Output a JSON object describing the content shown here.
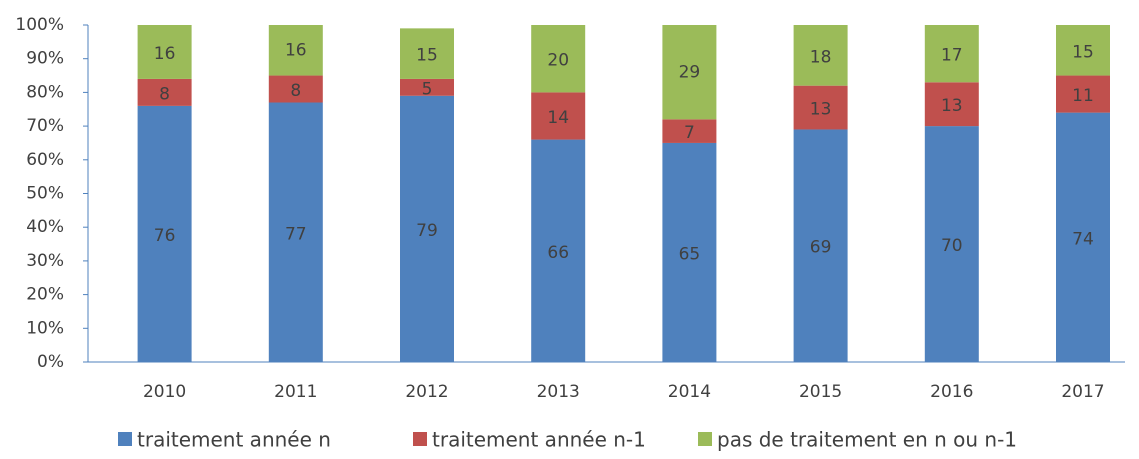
{
  "chart_data": {
    "type": "stacked_bar",
    "categories": [
      "2010",
      "2011",
      "2012",
      "2013",
      "2014",
      "2015",
      "2016",
      "2017"
    ],
    "series": [
      {
        "name": "traitement année n",
        "color": "#4f81bd",
        "values": [
          76,
          77,
          79,
          66,
          65,
          69,
          70,
          74
        ]
      },
      {
        "name": "traitement année n-1",
        "color": "#c0504d",
        "values": [
          8,
          8,
          5,
          14,
          7,
          13,
          13,
          11
        ]
      },
      {
        "name": "pas de traitement en n ou n-1",
        "color": "#9bbb59",
        "values": [
          16,
          16,
          15,
          20,
          29,
          18,
          17,
          15
        ]
      }
    ],
    "ylim": [
      0,
      100
    ],
    "yticks": [
      {
        "value": 0,
        "label": "0%"
      },
      {
        "value": 10,
        "label": "10%"
      },
      {
        "value": 20,
        "label": "20%"
      },
      {
        "value": 30,
        "label": "30%"
      },
      {
        "value": 40,
        "label": "40%"
      },
      {
        "value": 50,
        "label": "50%"
      },
      {
        "value": 60,
        "label": "60%"
      },
      {
        "value": 70,
        "label": "70%"
      },
      {
        "value": 80,
        "label": "80%"
      },
      {
        "value": 90,
        "label": "90%"
      },
      {
        "value": 100,
        "label": "100%"
      }
    ],
    "legend": "bottom"
  }
}
